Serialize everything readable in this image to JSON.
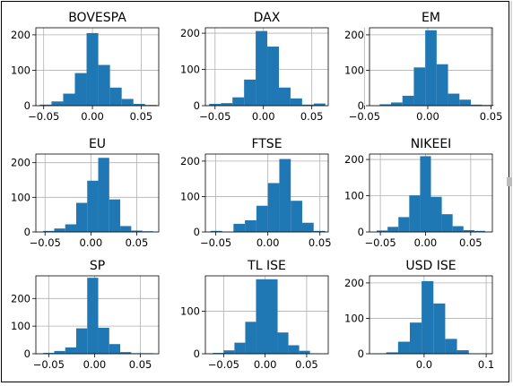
{
  "colors": {
    "bar": "#1f77b4",
    "grid": "#b0b0b0",
    "axis": "#000000"
  },
  "chart_data": [
    {
      "type": "bar",
      "title": "BOVESPA",
      "xlim": [
        -0.058,
        0.068
      ],
      "ylim": [
        0,
        220
      ],
      "bin_edges": [
        -0.054,
        -0.042,
        -0.03,
        -0.018,
        -0.006,
        0.006,
        0.018,
        0.03,
        0.042,
        0.054,
        0.066
      ],
      "values": [
        3,
        12,
        34,
        92,
        205,
        115,
        51,
        19,
        5,
        2
      ],
      "xticks": [
        -0.05,
        0.0,
        0.05
      ],
      "xtick_labels": [
        "−0.05",
        "0.00",
        "0.05"
      ],
      "yticks": [
        0,
        100,
        200
      ],
      "ytick_labels": [
        "0",
        "100",
        "200"
      ]
    },
    {
      "type": "bar",
      "title": "DAX",
      "xlim": [
        -0.06,
        0.067
      ],
      "ylim": [
        0,
        215
      ],
      "bin_edges": [
        -0.056,
        -0.044,
        -0.032,
        -0.02,
        -0.008,
        0.004,
        0.016,
        0.028,
        0.04,
        0.052,
        0.064
      ],
      "values": [
        5,
        7,
        23,
        72,
        206,
        163,
        50,
        20,
        3,
        6
      ],
      "xticks": [
        -0.05,
        0.0,
        0.05
      ],
      "xtick_labels": [
        "−0.05",
        "0.00",
        "0.05"
      ],
      "yticks": [
        0,
        100,
        200
      ],
      "ytick_labels": [
        "0",
        "100",
        "200"
      ]
    },
    {
      "type": "bar",
      "title": "EM",
      "xlim": [
        -0.046,
        0.051
      ],
      "ylim": [
        0,
        220
      ],
      "bin_edges": [
        -0.038,
        -0.029,
        -0.02,
        -0.011,
        -0.002,
        0.007,
        0.016,
        0.025,
        0.034,
        0.043,
        0.052
      ],
      "values": [
        4,
        9,
        28,
        108,
        213,
        117,
        34,
        17,
        3,
        2
      ],
      "xticks": [
        -0.05,
        0.0,
        0.05
      ],
      "xtick_labels": [
        "−0.05",
        "0.00",
        "0.05"
      ],
      "yticks": [
        0,
        100,
        200
      ],
      "ytick_labels": [
        "0",
        "100",
        "200"
      ]
    },
    {
      "type": "bar",
      "title": "EU",
      "xlim": [
        -0.06,
        0.074
      ],
      "ylim": [
        0,
        225
      ],
      "bin_edges": [
        -0.052,
        -0.04,
        -0.028,
        -0.016,
        -0.004,
        0.008,
        0.02,
        0.032,
        0.044,
        0.056,
        0.068
      ],
      "values": [
        3,
        10,
        22,
        84,
        148,
        214,
        94,
        17,
        4,
        2
      ],
      "xticks": [
        -0.05,
        0.0,
        0.05
      ],
      "xtick_labels": [
        "−0.05",
        "0.00",
        "0.05"
      ],
      "yticks": [
        0,
        100,
        200
      ],
      "ytick_labels": [
        "0",
        "100",
        "200"
      ]
    },
    {
      "type": "bar",
      "title": "FTSE",
      "xlim": [
        -0.06,
        0.058
      ],
      "ylim": [
        0,
        220
      ],
      "bin_edges": [
        -0.055,
        -0.044,
        -0.033,
        -0.022,
        -0.011,
        0.0,
        0.011,
        0.022,
        0.033,
        0.044,
        0.055
      ],
      "values": [
        3,
        0,
        23,
        33,
        74,
        138,
        206,
        88,
        26,
        3
      ],
      "xticks": [
        -0.05,
        0.0,
        0.05
      ],
      "xtick_labels": [
        "−0.05",
        "0.00",
        "0.05"
      ],
      "yticks": [
        0,
        100,
        200
      ],
      "ytick_labels": [
        "0",
        "100",
        "200"
      ]
    },
    {
      "type": "bar",
      "title": "NIKEEI",
      "xlim": [
        -0.062,
        0.074
      ],
      "ylim": [
        0,
        215
      ],
      "bin_edges": [
        -0.054,
        -0.042,
        -0.03,
        -0.018,
        -0.006,
        0.006,
        0.018,
        0.03,
        0.042,
        0.054,
        0.066
      ],
      "values": [
        4,
        14,
        41,
        101,
        209,
        97,
        49,
        16,
        5,
        3
      ],
      "xticks": [
        -0.05,
        0.0,
        0.05
      ],
      "xtick_labels": [
        "−0.05",
        "0.00",
        "0.05"
      ],
      "yticks": [
        0,
        100,
        200
      ],
      "ytick_labels": [
        "0",
        "100",
        "200"
      ]
    },
    {
      "type": "bar",
      "title": "SP",
      "xlim": [
        -0.064,
        0.07
      ],
      "ylim": [
        0,
        282
      ],
      "bin_edges": [
        -0.056,
        -0.044,
        -0.032,
        -0.02,
        -0.008,
        0.004,
        0.016,
        0.028,
        0.04,
        0.052,
        0.064
      ],
      "values": [
        3,
        10,
        23,
        92,
        275,
        94,
        35,
        6,
        2,
        2
      ],
      "xticks": [
        -0.05,
        0.0,
        0.05
      ],
      "xtick_labels": [
        "−0.05",
        "0.00",
        "0.05"
      ],
      "yticks": [
        0,
        100,
        200
      ],
      "ytick_labels": [
        "0",
        "100",
        "200"
      ]
    },
    {
      "type": "bar",
      "title": "TL ISE",
      "xlim": [
        -0.072,
        0.076
      ],
      "ylim": [
        0,
        183
      ],
      "bin_edges": [
        -0.063,
        -0.05,
        -0.037,
        -0.024,
        -0.011,
        0.002,
        0.015,
        0.028,
        0.041,
        0.054,
        0.067
      ],
      "values": [
        2,
        8,
        26,
        75,
        175,
        175,
        50,
        20,
        7,
        1
      ],
      "xticks": [
        -0.05,
        0.0,
        0.05
      ],
      "xtick_labels": [
        "−0.05",
        "0.00",
        "0.05"
      ],
      "yticks": [
        0,
        100
      ],
      "ytick_labels": [
        "0",
        "100"
      ]
    },
    {
      "type": "bar",
      "title": "USD ISE",
      "xlim": [
        -0.088,
        0.11
      ],
      "ylim": [
        0,
        220
      ],
      "bin_edges": [
        -0.08,
        -0.061,
        -0.042,
        -0.023,
        -0.004,
        0.015,
        0.034,
        0.053,
        0.072,
        0.091,
        0.11
      ],
      "values": [
        1,
        4,
        34,
        88,
        205,
        142,
        42,
        10,
        1,
        1
      ],
      "xticks": [
        0.0,
        0.1
      ],
      "xtick_labels": [
        "0.0",
        "0.1"
      ],
      "yticks": [
        0,
        100,
        200
      ],
      "ytick_labels": [
        "0",
        "100",
        "200"
      ]
    }
  ]
}
